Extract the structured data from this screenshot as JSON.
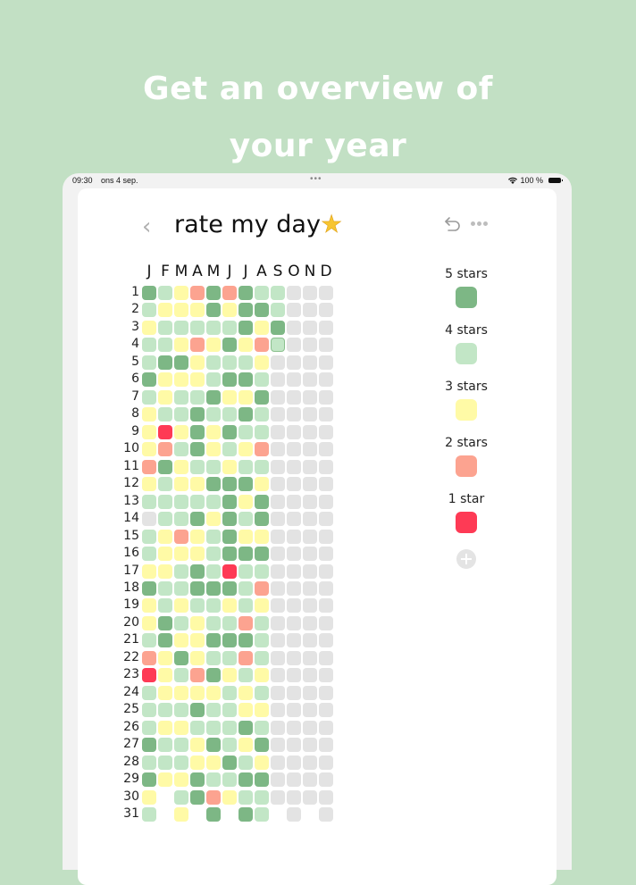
{
  "headline": {
    "line1": "Get an overview of",
    "line2": "your year"
  },
  "statusbar": {
    "time": "09:30",
    "date": "ons 4 sep.",
    "multitask_dots": "•••",
    "battery_text": "100 %"
  },
  "nav": {
    "back_icon": "‹",
    "title": "rate my day",
    "title_emoji": "★",
    "undo_icon": "undo-arrow",
    "more_icon": "ellipsis"
  },
  "colors": {
    "background": "#c2e0c4",
    "5": "#7db785",
    "4": "#c2e6c6",
    "3": "#fffaa6",
    "2": "#fca390",
    "1": "#fe3a55",
    "0": "#e3e3e3"
  },
  "calendar": {
    "months": [
      "J",
      "F",
      "M",
      "A",
      "M",
      "J",
      "J",
      "A",
      "S",
      "O",
      "N",
      "D"
    ],
    "days": [
      "1",
      "2",
      "3",
      "4",
      "5",
      "6",
      "7",
      "8",
      "9",
      "10",
      "11",
      "12",
      "13",
      "14",
      "15",
      "16",
      "17",
      "18",
      "19",
      "20",
      "21",
      "22",
      "23",
      "24",
      "25",
      "26",
      "27",
      "28",
      "29",
      "30",
      "31"
    ],
    "today": {
      "day": 4,
      "month": 9
    },
    "ratings": [
      [
        5,
        4,
        3,
        2,
        5,
        2,
        5,
        4,
        4,
        0,
        0,
        0
      ],
      [
        4,
        3,
        3,
        3,
        5,
        3,
        5,
        5,
        4,
        0,
        0,
        0
      ],
      [
        3,
        4,
        4,
        4,
        4,
        4,
        5,
        3,
        5,
        0,
        0,
        0
      ],
      [
        4,
        4,
        3,
        2,
        3,
        5,
        3,
        2,
        4,
        0,
        0,
        0
      ],
      [
        4,
        5,
        5,
        3,
        4,
        4,
        4,
        3,
        0,
        0,
        0,
        0
      ],
      [
        5,
        3,
        3,
        3,
        4,
        5,
        5,
        4,
        0,
        0,
        0,
        0
      ],
      [
        4,
        3,
        4,
        4,
        5,
        3,
        3,
        5,
        0,
        0,
        0,
        0
      ],
      [
        3,
        4,
        4,
        5,
        4,
        4,
        5,
        4,
        0,
        0,
        0,
        0
      ],
      [
        3,
        1,
        3,
        5,
        3,
        5,
        4,
        4,
        0,
        0,
        0,
        0
      ],
      [
        3,
        2,
        4,
        5,
        3,
        4,
        3,
        2,
        0,
        0,
        0,
        0
      ],
      [
        2,
        5,
        3,
        4,
        4,
        3,
        4,
        4,
        0,
        0,
        0,
        0
      ],
      [
        3,
        4,
        3,
        3,
        5,
        5,
        5,
        3,
        0,
        0,
        0,
        0
      ],
      [
        4,
        4,
        4,
        4,
        4,
        5,
        3,
        5,
        0,
        0,
        0,
        0
      ],
      [
        0,
        4,
        4,
        5,
        3,
        5,
        4,
        5,
        0,
        0,
        0,
        0
      ],
      [
        4,
        3,
        2,
        3,
        4,
        5,
        3,
        3,
        0,
        0,
        0,
        0
      ],
      [
        4,
        3,
        3,
        3,
        4,
        5,
        5,
        5,
        0,
        0,
        0,
        0
      ],
      [
        3,
        3,
        4,
        5,
        4,
        1,
        4,
        4,
        0,
        0,
        0,
        0
      ],
      [
        5,
        4,
        4,
        5,
        5,
        5,
        4,
        2,
        0,
        0,
        0,
        0
      ],
      [
        3,
        4,
        3,
        4,
        4,
        3,
        4,
        3,
        0,
        0,
        0,
        0
      ],
      [
        3,
        5,
        4,
        3,
        4,
        4,
        2,
        4,
        0,
        0,
        0,
        0
      ],
      [
        4,
        5,
        3,
        3,
        5,
        5,
        5,
        4,
        0,
        0,
        0,
        0
      ],
      [
        2,
        3,
        5,
        3,
        4,
        4,
        2,
        4,
        0,
        0,
        0,
        0
      ],
      [
        1,
        3,
        4,
        2,
        5,
        3,
        4,
        3,
        0,
        0,
        0,
        0
      ],
      [
        4,
        3,
        3,
        3,
        3,
        4,
        3,
        4,
        0,
        0,
        0,
        0
      ],
      [
        4,
        4,
        4,
        5,
        4,
        4,
        3,
        3,
        0,
        0,
        0,
        0
      ],
      [
        4,
        3,
        3,
        4,
        4,
        4,
        5,
        4,
        0,
        0,
        0,
        0
      ],
      [
        5,
        4,
        4,
        3,
        5,
        4,
        3,
        5,
        0,
        0,
        0,
        0
      ],
      [
        4,
        4,
        4,
        3,
        3,
        5,
        4,
        3,
        0,
        0,
        0,
        0
      ],
      [
        5,
        3,
        3,
        5,
        4,
        4,
        5,
        5,
        0,
        0,
        0,
        0
      ],
      [
        3,
        null,
        4,
        5,
        2,
        3,
        4,
        4,
        0,
        0,
        0,
        0
      ],
      [
        4,
        null,
        3,
        null,
        5,
        null,
        5,
        4,
        null,
        0,
        null,
        0
      ]
    ]
  },
  "legend": {
    "items": [
      {
        "label": "5 stars",
        "value": 5
      },
      {
        "label": "4 stars",
        "value": 4
      },
      {
        "label": "3 stars",
        "value": 3
      },
      {
        "label": "2 stars",
        "value": 2
      },
      {
        "label": "1 star",
        "value": 1
      }
    ],
    "add_icon": "plus-circle"
  }
}
